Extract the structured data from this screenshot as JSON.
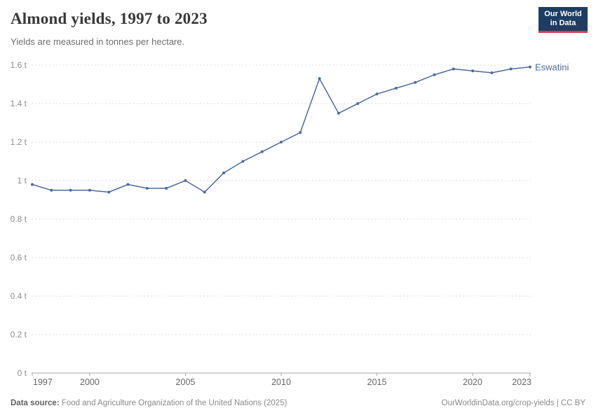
{
  "header": {
    "title": "Almond yields, 1997 to 2023",
    "subtitle": "Yields are measured in tonnes per hectare."
  },
  "logo": {
    "line1": "Our World",
    "line2": "in Data"
  },
  "chart_data": {
    "type": "line",
    "title": "Almond yields, 1997 to 2023",
    "ylabel": "tonnes per hectare",
    "xlabel": "",
    "xlim": [
      1997,
      2023
    ],
    "ylim": [
      0,
      1.6
    ],
    "grid": "horizontal-dashed",
    "legend_position": "end-of-line-label",
    "colors": {
      "line": "#4c6a9c",
      "grid": "#dcdcdc",
      "axis": "#a6a6a6",
      "ytick_text": "#8c8c8c",
      "xtick_text": "#666666"
    },
    "yticks": [
      {
        "value": 0,
        "label": "0 t"
      },
      {
        "value": 0.2,
        "label": "0.2 t"
      },
      {
        "value": 0.4,
        "label": "0.4 t"
      },
      {
        "value": 0.6,
        "label": "0.6 t"
      },
      {
        "value": 0.8,
        "label": "0.8 t"
      },
      {
        "value": 1,
        "label": "1 t"
      },
      {
        "value": 1.2,
        "label": "1.2 t"
      },
      {
        "value": 1.4,
        "label": "1.4 t"
      },
      {
        "value": 1.6,
        "label": "1.6 t"
      }
    ],
    "xticks": [
      1997,
      2000,
      2005,
      2010,
      2015,
      2020,
      2023
    ],
    "series": [
      {
        "name": "Eswatini",
        "color": "#4c6a9c",
        "x": [
          1997,
          1998,
          1999,
          2000,
          2001,
          2002,
          2003,
          2004,
          2005,
          2006,
          2007,
          2008,
          2009,
          2010,
          2011,
          2012,
          2013,
          2014,
          2015,
          2016,
          2017,
          2018,
          2019,
          2020,
          2021,
          2022,
          2023
        ],
        "values": [
          0.98,
          0.95,
          0.95,
          0.95,
          0.94,
          0.98,
          0.96,
          0.96,
          1.0,
          0.94,
          1.04,
          1.1,
          1.15,
          1.2,
          1.25,
          1.53,
          1.35,
          1.4,
          1.45,
          1.48,
          1.51,
          1.55,
          1.58,
          1.57,
          1.56,
          1.58,
          1.59
        ]
      }
    ]
  },
  "footer": {
    "source_label": "Data source:",
    "source_text": " Food and Agriculture Organization of the United Nations (2025)",
    "link_text": "OurWorldinData.org/crop-yields | CC BY"
  }
}
